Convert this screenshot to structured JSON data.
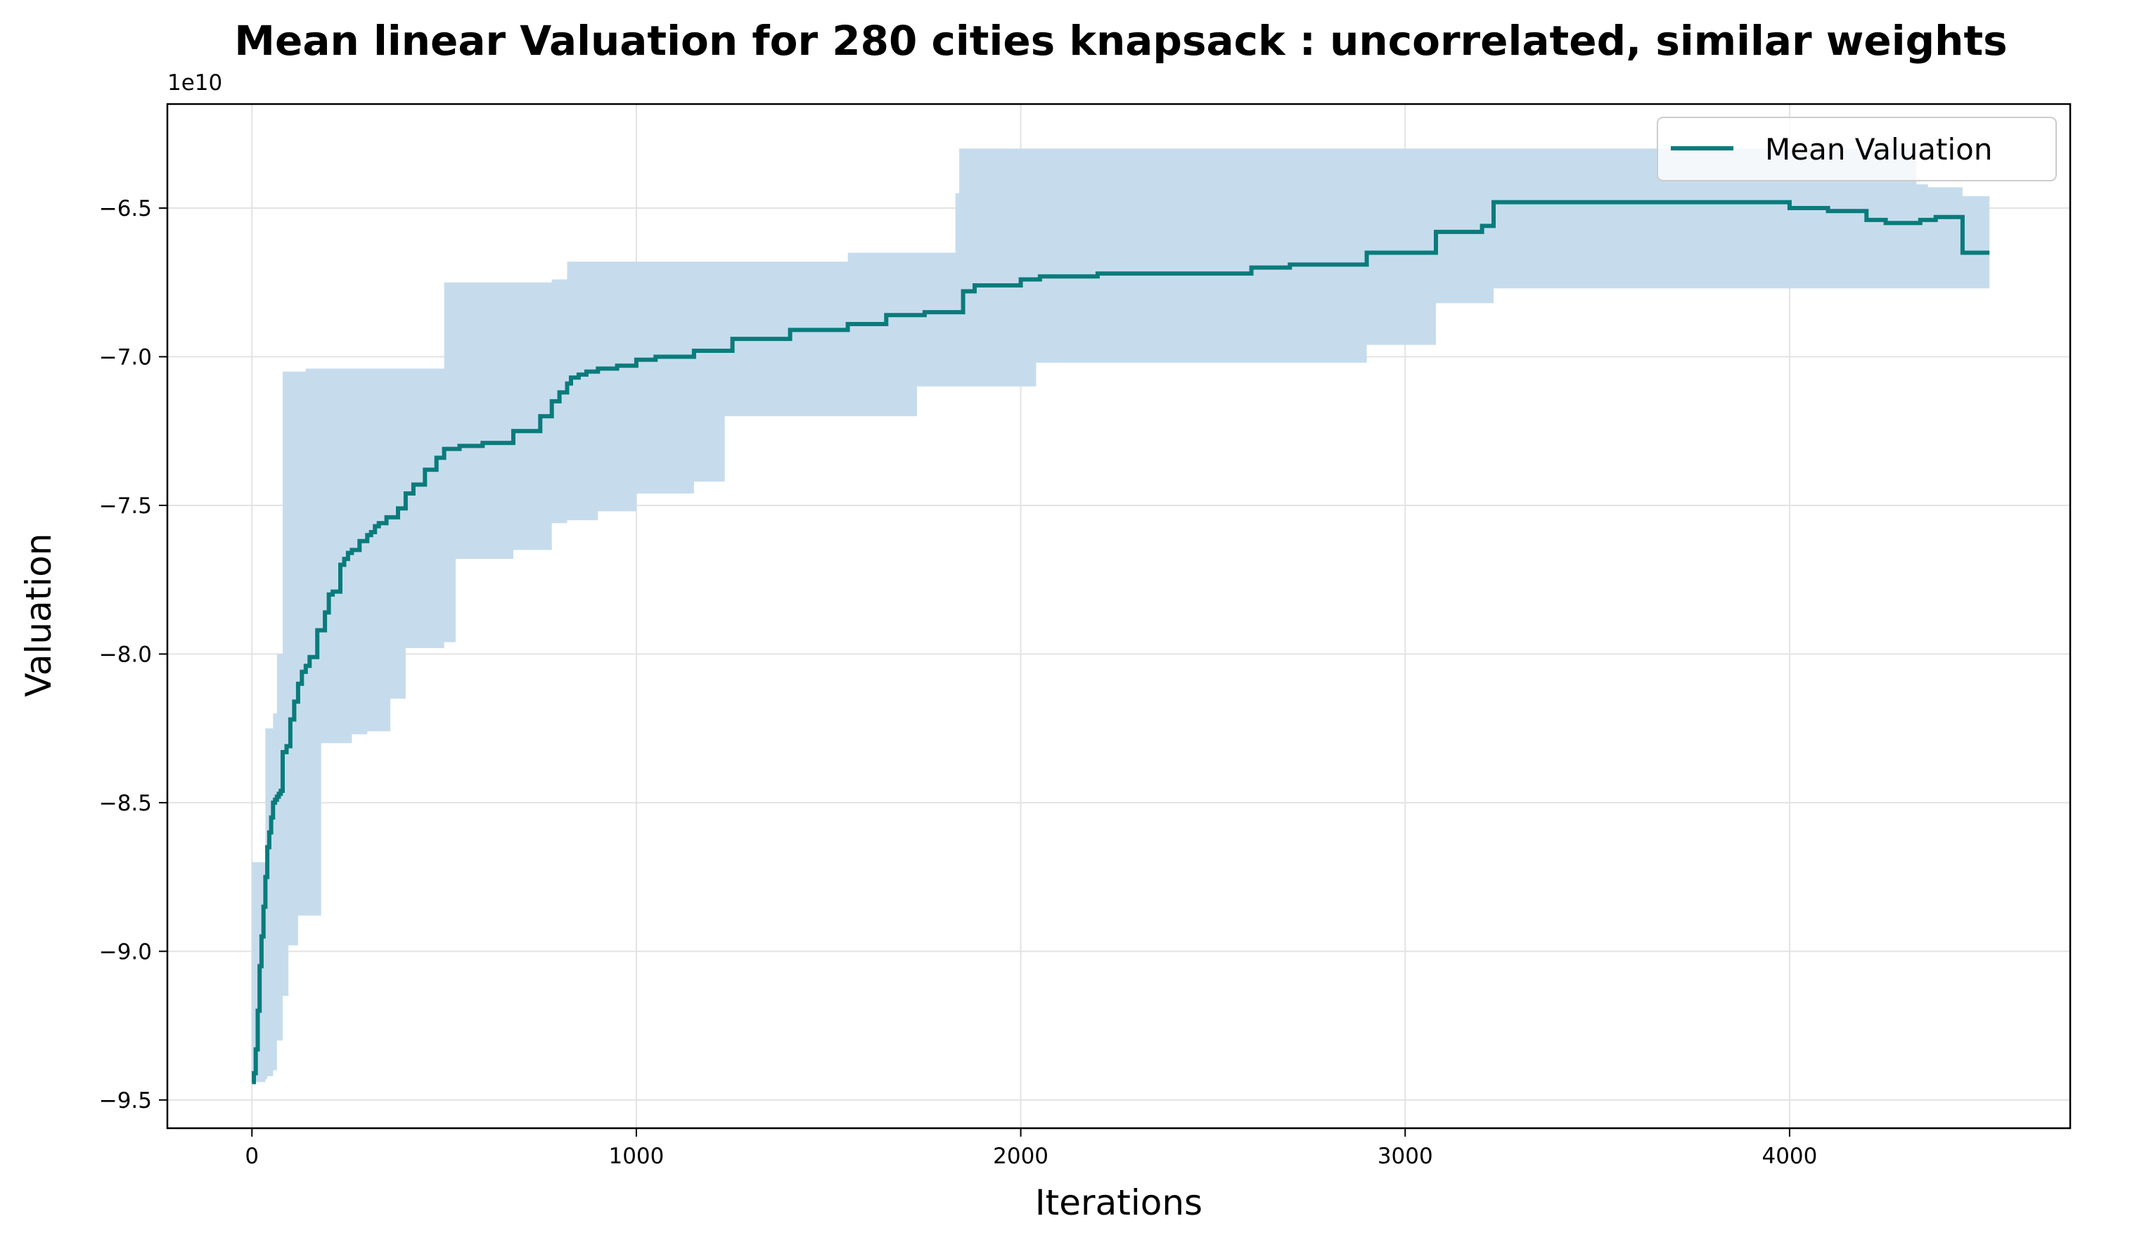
{
  "chart_data": {
    "type": "line",
    "title": "Mean linear Valuation for 280 cities knapsack : uncorrelated, similar weights",
    "xlabel": "Iterations",
    "ylabel": "Valuation",
    "offset_label": "1e10",
    "xlim": [
      -220,
      4730
    ],
    "ylim": [
      -95.95,
      -61.5
    ],
    "x_ticks": [
      0,
      1000,
      2000,
      3000,
      4000
    ],
    "x_tick_labels": [
      "0",
      "1000",
      "2000",
      "3000",
      "4000"
    ],
    "y_ticks": [
      -95,
      -90,
      -85,
      -80,
      -75,
      -70,
      -65
    ],
    "y_tick_labels": [
      "−9.5",
      "−9.0",
      "−8.5",
      "−8.0",
      "−7.5",
      "−7.0",
      "−6.5"
    ],
    "y_unit_note": "values in units of 1e9",
    "grid": true,
    "legend_position": "top-right",
    "series": [
      {
        "name": "Mean Valuation",
        "color": "#0a7b7b",
        "x": [
          0,
          5,
          10,
          15,
          20,
          25,
          30,
          35,
          40,
          45,
          50,
          55,
          60,
          65,
          70,
          75,
          80,
          90,
          100,
          110,
          120,
          130,
          140,
          150,
          170,
          190,
          200,
          210,
          230,
          240,
          250,
          260,
          280,
          300,
          310,
          320,
          330,
          350,
          380,
          400,
          420,
          450,
          480,
          500,
          540,
          600,
          680,
          750,
          780,
          800,
          820,
          830,
          850,
          870,
          900,
          950,
          1000,
          1050,
          1150,
          1250,
          1400,
          1550,
          1650,
          1750,
          1850,
          1880,
          2000,
          2050,
          2200,
          2400,
          2600,
          2700,
          2900,
          3000,
          3080,
          3200,
          3230,
          3300,
          3500,
          3800,
          4000,
          4100,
          4200,
          4250,
          4300,
          4340,
          4380,
          4450,
          4520
        ],
        "y": [
          -94.4,
          -94.1,
          -93.3,
          -92.0,
          -90.5,
          -89.5,
          -88.5,
          -87.5,
          -86.5,
          -86.0,
          -85.5,
          -85.0,
          -84.9,
          -84.8,
          -84.7,
          -84.6,
          -83.3,
          -83.1,
          -82.2,
          -81.6,
          -81.0,
          -80.6,
          -80.4,
          -80.1,
          -79.2,
          -78.6,
          -78.0,
          -77.9,
          -77.0,
          -76.8,
          -76.6,
          -76.5,
          -76.2,
          -76.0,
          -75.9,
          -75.7,
          -75.6,
          -75.4,
          -75.1,
          -74.6,
          -74.3,
          -73.8,
          -73.4,
          -73.1,
          -73.0,
          -72.9,
          -72.5,
          -72.0,
          -71.5,
          -71.2,
          -70.9,
          -70.7,
          -70.6,
          -70.5,
          -70.4,
          -70.3,
          -70.1,
          -70.0,
          -69.8,
          -69.4,
          -69.1,
          -68.9,
          -68.6,
          -68.5,
          -67.8,
          -67.6,
          -67.4,
          -67.3,
          -67.2,
          -67.2,
          -67.0,
          -66.9,
          -66.5,
          -66.5,
          -65.8,
          -65.6,
          -64.8,
          -64.8,
          -64.8,
          -64.8,
          -65.0,
          -65.1,
          -65.4,
          -65.5,
          -65.5,
          -65.4,
          -65.3,
          -66.5,
          -66.5
        ]
      }
    ],
    "band": {
      "color": "#c6dcec",
      "x": [
        0,
        35,
        40,
        55,
        65,
        80,
        95,
        120,
        140,
        160,
        180,
        200,
        260,
        300,
        360,
        400,
        500,
        530,
        680,
        780,
        820,
        900,
        1000,
        1050,
        1150,
        1230,
        1400,
        1550,
        1650,
        1730,
        1830,
        1840,
        1900,
        2000,
        2040,
        2200,
        2400,
        2700,
        2900,
        3080,
        3230,
        3300,
        3700,
        3950,
        4000,
        4200,
        4330,
        4360,
        4450
      ],
      "upper": [
        -87.0,
        -82.5,
        -82.5,
        -82.0,
        -80.0,
        -70.5,
        -70.5,
        -70.5,
        -70.4,
        -70.4,
        -70.4,
        -70.4,
        -70.4,
        -70.4,
        -70.4,
        -70.4,
        -67.5,
        -67.5,
        -67.5,
        -67.4,
        -66.8,
        -66.8,
        -66.8,
        -66.8,
        -66.8,
        -66.8,
        -66.8,
        -66.5,
        -66.5,
        -66.5,
        -64.5,
        -63.0,
        -63.0,
        -63.0,
        -63.0,
        -63.0,
        -63.0,
        -63.0,
        -63.0,
        -63.0,
        -63.0,
        -63.0,
        -63.0,
        -63.0,
        -63.0,
        -63.0,
        -64.2,
        -64.3,
        -64.6
      ],
      "lower": [
        -94.4,
        -94.3,
        -94.2,
        -94.0,
        -93.0,
        -91.5,
        -89.8,
        -88.8,
        -88.8,
        -88.8,
        -83.0,
        -83.0,
        -82.7,
        -82.6,
        -81.5,
        -79.8,
        -79.6,
        -76.8,
        -76.5,
        -75.6,
        -75.5,
        -75.2,
        -74.6,
        -74.6,
        -74.2,
        -72.0,
        -72.0,
        -72.0,
        -72.0,
        -71.0,
        -71.0,
        -71.0,
        -71.0,
        -71.0,
        -70.2,
        -70.2,
        -70.2,
        -70.2,
        -69.6,
        -68.2,
        -67.7,
        -67.7,
        -67.7,
        -67.7,
        -67.7,
        -67.7,
        -67.7,
        -67.7,
        -67.7
      ]
    }
  }
}
